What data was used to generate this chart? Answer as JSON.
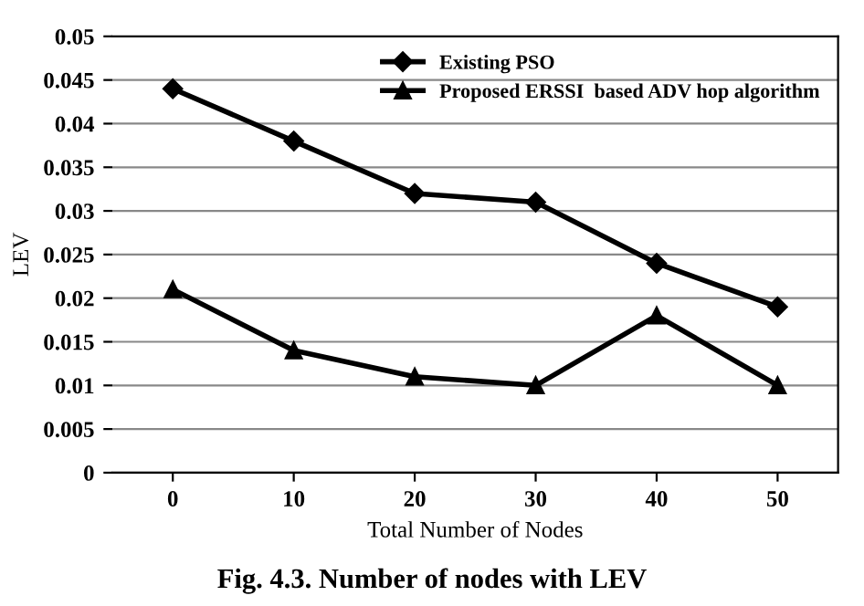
{
  "chart_data": {
    "type": "line",
    "xlabel": "Total Number of Nodes",
    "ylabel": "LEV",
    "categories": [
      "0",
      "10",
      "20",
      "30",
      "40",
      "50"
    ],
    "series": [
      {
        "name": "Existing PSO",
        "color": "#000000",
        "marker": "diamond",
        "values": [
          0.044,
          0.038,
          0.032,
          0.031,
          0.024,
          0.019
        ]
      },
      {
        "name": "Proposed ERSSI  based ADV hop algorithm",
        "color": "#000000",
        "marker": "triangle",
        "values": [
          0.021,
          0.014,
          0.011,
          0.01,
          0.018,
          0.01
        ]
      }
    ],
    "ylim": [
      0,
      0.05
    ],
    "yticks": [
      0,
      0.005,
      0.01,
      0.015,
      0.02,
      0.025,
      0.03,
      0.035,
      0.04,
      0.045,
      0.05
    ],
    "grid": "y",
    "legend": "top right",
    "line_style": "solid",
    "annotations": [
      "Fig. 4.3. Number of nodes with LEV"
    ]
  }
}
